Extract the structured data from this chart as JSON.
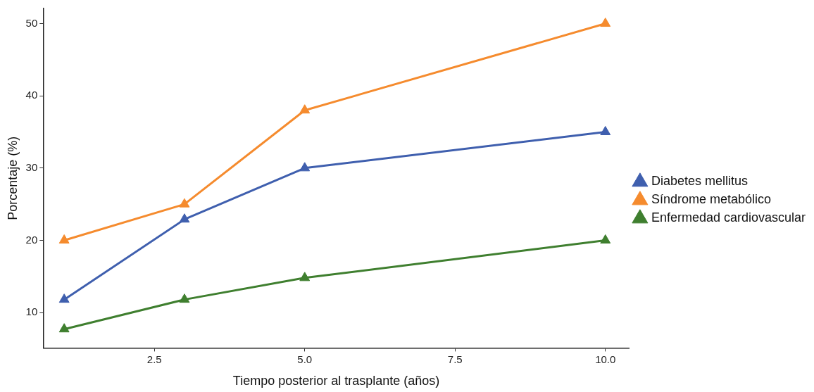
{
  "chart_data": {
    "type": "line",
    "xlabel": "Tiempo posterior al trasplante (años)",
    "ylabel": "Porcentaje (%)",
    "x": [
      1,
      3,
      5,
      10
    ],
    "series": [
      {
        "name": "Diabetes mellitus",
        "color": "#3f5fae",
        "values": [
          11.8,
          22.9,
          30,
          35
        ]
      },
      {
        "name": "Síndrome metabólico",
        "color": "#f58b2e",
        "values": [
          20,
          25,
          38,
          50
        ]
      },
      {
        "name": "Enfermedad cardiovascular",
        "color": "#3f7f2f",
        "values": [
          7.7,
          11.8,
          14.8,
          20
        ]
      }
    ],
    "xlim": [
      0.65,
      10.4
    ],
    "xticks": [
      {
        "value": 2.5,
        "label": "2.5"
      },
      {
        "value": 5,
        "label": "5.0"
      },
      {
        "value": 7.5,
        "label": "7.5"
      },
      {
        "value": 10,
        "label": "10.0"
      }
    ],
    "ylim": [
      5.1,
      52.1
    ],
    "yticks": [
      10,
      20,
      30,
      40,
      50
    ],
    "grid": false,
    "legend": "right",
    "marker": "triangle",
    "line_style": "solid"
  }
}
